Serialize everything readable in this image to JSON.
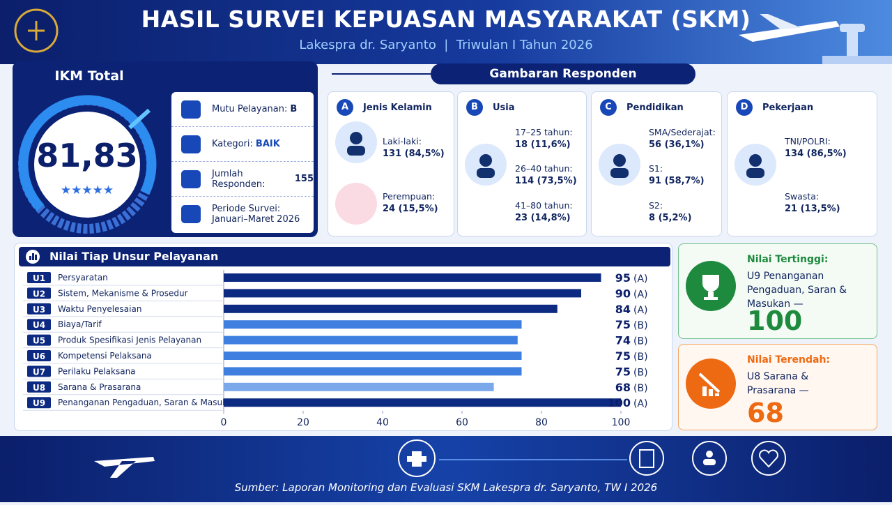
{
  "header": {
    "title": "HASIL SURVEI KEPUASAN MASYARAKAT (SKM)",
    "subtitle": "Lakespra dr. Saryanto  |  Triwulan I Tahun 2026"
  },
  "ikm": {
    "title": "IKM Total",
    "score": "81,83",
    "items": [
      {
        "label": "Mutu Pelayanan:",
        "value": "B"
      },
      {
        "label": "Kategori:",
        "value": "BAIK"
      },
      {
        "label": "Jumlah Responden:",
        "value": "155"
      },
      {
        "label": "Periode Survei:",
        "value": "Januari–Maret 2026"
      }
    ]
  },
  "respondents": {
    "title": "Gambaran Responden",
    "groups": [
      {
        "letter": "A",
        "title": "Jenis Kelamin",
        "items": [
          {
            "label": "Laki-laki:",
            "value": "131 (84,5%)"
          },
          {
            "label": "Perempuan:",
            "value": "24 (15,5%)"
          }
        ]
      },
      {
        "letter": "B",
        "title": "Usia",
        "items": [
          {
            "label": "17–25 tahun:",
            "value": "18 (11,6%)"
          },
          {
            "label": "26–40 tahun:",
            "value": "114 (73,5%)"
          },
          {
            "label": "41–80 tahun:",
            "value": "23 (14,8%)"
          }
        ]
      },
      {
        "letter": "C",
        "title": "Pendidikan",
        "items": [
          {
            "label": "SMA/Sederajat:",
            "value": "56 (36,1%)"
          },
          {
            "label": "S1:",
            "value": "91 (58,7%)"
          },
          {
            "label": "S2:",
            "value": "8 (5,2%)"
          }
        ]
      },
      {
        "letter": "D",
        "title": "Pekerjaan",
        "items": [
          {
            "label": "TNI/POLRI:",
            "value": "134 (86,5%)"
          },
          {
            "label": "Swasta:",
            "value": "21 (13,5%)"
          }
        ]
      }
    ]
  },
  "chart_data": {
    "type": "bar",
    "orientation": "horizontal",
    "title": "Nilai Tiap Unsur Pelayanan",
    "codes": [
      "U1",
      "U2",
      "U3",
      "U4",
      "U5",
      "U6",
      "U7",
      "U8",
      "U9"
    ],
    "categories": [
      "Persyaratan",
      "Sistem, Mekanisme & Prosedur",
      "Waktu Penyelesaian",
      "Biaya/Tarif",
      "Produk Spesifikasi Jenis Pelayanan",
      "Kompetensi Pelaksana",
      "Perilaku Pelaksana",
      "Sarana & Prasarana",
      "Penanganan Pengaduan, Saran & Masukan"
    ],
    "values": [
      95,
      90,
      84,
      75,
      74,
      75,
      75,
      68,
      100
    ],
    "grades": [
      "(A)",
      "(A)",
      "(A)",
      "(B)",
      "(B)",
      "(B)",
      "(B)",
      "(B)",
      "(A)"
    ],
    "colors": [
      "#0d2a82",
      "#0d2a82",
      "#0d2a82",
      "#3f7fe0",
      "#3f7fe0",
      "#3f7fe0",
      "#3f7fe0",
      "#7aa8ea",
      "#0d2a82"
    ],
    "xlim": [
      0,
      100
    ],
    "xticks": [
      0,
      20,
      40,
      60,
      80,
      100
    ]
  },
  "highlights": [
    {
      "title": "Nilai Tertinggi:",
      "text": "U9 Penanganan Pengaduan, Saran & Masukan —",
      "value": "100"
    },
    {
      "title": "Nilai Terendah:",
      "text": "U8 Sarana & Prasarana —",
      "value": "68"
    }
  ],
  "footer": {
    "source": "Sumber: Laporan Monitoring dan Evaluasi SKM Lakespra dr. Saryanto, TW I 2026"
  }
}
